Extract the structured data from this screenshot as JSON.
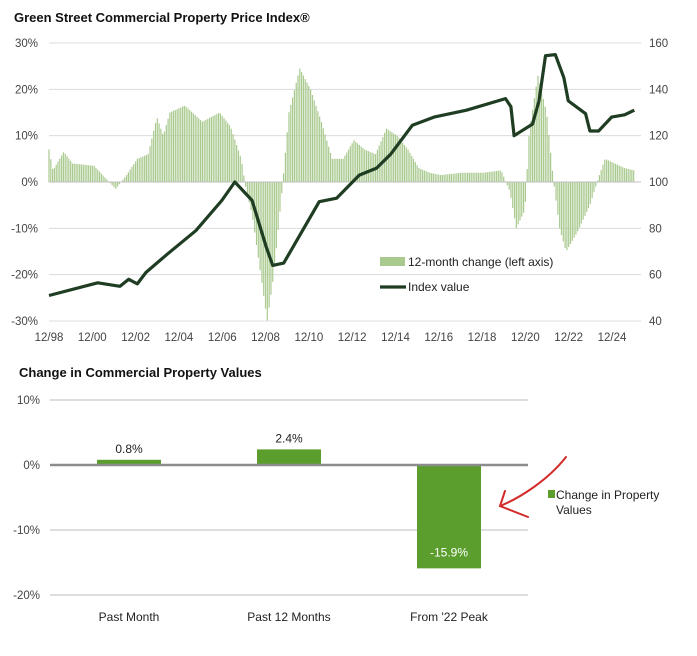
{
  "chart_data": [
    {
      "type": "bar+line",
      "title": "Green Street Commercial Property Price Index®",
      "left_axis": {
        "ylim": [
          -30,
          30
        ],
        "ticks": [
          "30%",
          "20%",
          "10%",
          "0%",
          "-10%",
          "-20%",
          "-30%"
        ]
      },
      "right_axis": {
        "ylim": [
          40,
          160
        ],
        "ticks": [
          "160",
          "140",
          "120",
          "100",
          "80",
          "60",
          "40"
        ]
      },
      "x_range": [
        1998.92,
        2025.95
      ],
      "x_ticks": [
        "12/98",
        "12/00",
        "12/02",
        "12/04",
        "12/06",
        "12/08",
        "12/10",
        "12/12",
        "12/14",
        "12/16",
        "12/18",
        "12/20",
        "12/22",
        "12/24"
      ],
      "grid": true,
      "legend": {
        "placement": "center-right",
        "bar_label": "12-month change (left axis)",
        "line_label": "Index value"
      },
      "colors": {
        "bars": "#a9c98e",
        "line": "#1f3d22",
        "grid": "#d9d9d9"
      },
      "bar_series": {
        "name": "12-month change (left axis)",
        "x": [
          1998.92,
          1999.1,
          1999.6,
          2000.0,
          2001.0,
          2001.5,
          2002.0,
          2002.5,
          2003.0,
          2003.5,
          2003.9,
          2004.2,
          2004.5,
          2005.2,
          2006.0,
          2006.8,
          2007.3,
          2007.8,
          2008.0,
          2008.3,
          2008.7,
          2009.0,
          2009.3,
          2009.7,
          2010.0,
          2010.5,
          2011.0,
          2011.5,
          2012.0,
          2012.5,
          2013.0,
          2013.5,
          2014.0,
          2014.5,
          2015.0,
          2015.5,
          2016.0,
          2016.5,
          2017.0,
          2018.0,
          2019.0,
          2019.8,
          2020.2,
          2020.5,
          2020.9,
          2021.1,
          2021.5,
          2021.9,
          2022.2,
          2022.5,
          2022.8,
          2023.3,
          2023.9,
          2024.3,
          2024.6,
          2025.5,
          2025.95
        ],
        "values": [
          7,
          2.5,
          6.5,
          4,
          3.5,
          1,
          -1.5,
          1.5,
          5,
          6,
          14,
          10,
          15,
          16.5,
          13,
          15,
          12,
          5,
          -1,
          -7,
          -20,
          -30,
          -20,
          -1,
          15,
          24.5,
          20,
          13,
          5,
          5,
          9,
          7,
          6,
          11.5,
          10,
          7,
          3,
          2,
          1.5,
          2,
          2,
          2.5,
          -2,
          -10,
          -6,
          11,
          23,
          15,
          1,
          -10,
          -15,
          -11,
          -5,
          1,
          5,
          3,
          2.5
        ]
      },
      "line_series": {
        "name": "Index value",
        "x": [
          1998.92,
          2001.17,
          2002.2,
          2002.6,
          2003.0,
          2003.4,
          2004.4,
          2005.7,
          2006.9,
          2007.5,
          2007.8,
          2008.3,
          2008.95,
          2009.25,
          2009.76,
          2011.4,
          2012.2,
          2013.25,
          2014.05,
          2014.7,
          2015.7,
          2016.7,
          2018.2,
          2020.0,
          2020.25,
          2020.4,
          2021.25,
          2021.55,
          2021.85,
          2022.3,
          2022.7,
          2022.9,
          2023.7,
          2023.9,
          2024.3,
          2024.9,
          2025.5,
          2025.95
        ],
        "values": [
          51,
          56.5,
          55,
          58,
          56,
          61,
          69,
          79,
          92,
          100,
          97,
          92,
          72,
          64,
          65,
          91.5,
          93,
          103,
          106,
          112,
          124.5,
          128,
          131,
          136,
          132.5,
          120,
          125,
          135,
          154.5,
          155,
          145,
          135,
          129.5,
          122,
          122,
          128,
          129,
          131
        ]
      }
    },
    {
      "type": "bar",
      "title": "Change in Commercial Property Values",
      "categories": [
        "Past Month",
        "Past 12 Months",
        "From '22 Peak"
      ],
      "values": [
        0.8,
        2.4,
        -15.9
      ],
      "data_labels": [
        "0.8%",
        "2.4%",
        "-15.9%"
      ],
      "ylim": [
        -20,
        10
      ],
      "y_ticks": [
        "10%",
        "0%",
        "-10%",
        "-20%"
      ],
      "legend": {
        "placement": "right",
        "label_line1": "Change in Property",
        "label_line2": "Values"
      },
      "colors": {
        "bar": "#5b9e2e",
        "annotation_arrow": "#d42a2a"
      },
      "annotation": "red-arrow-pointing-to-peak-bar"
    }
  ]
}
